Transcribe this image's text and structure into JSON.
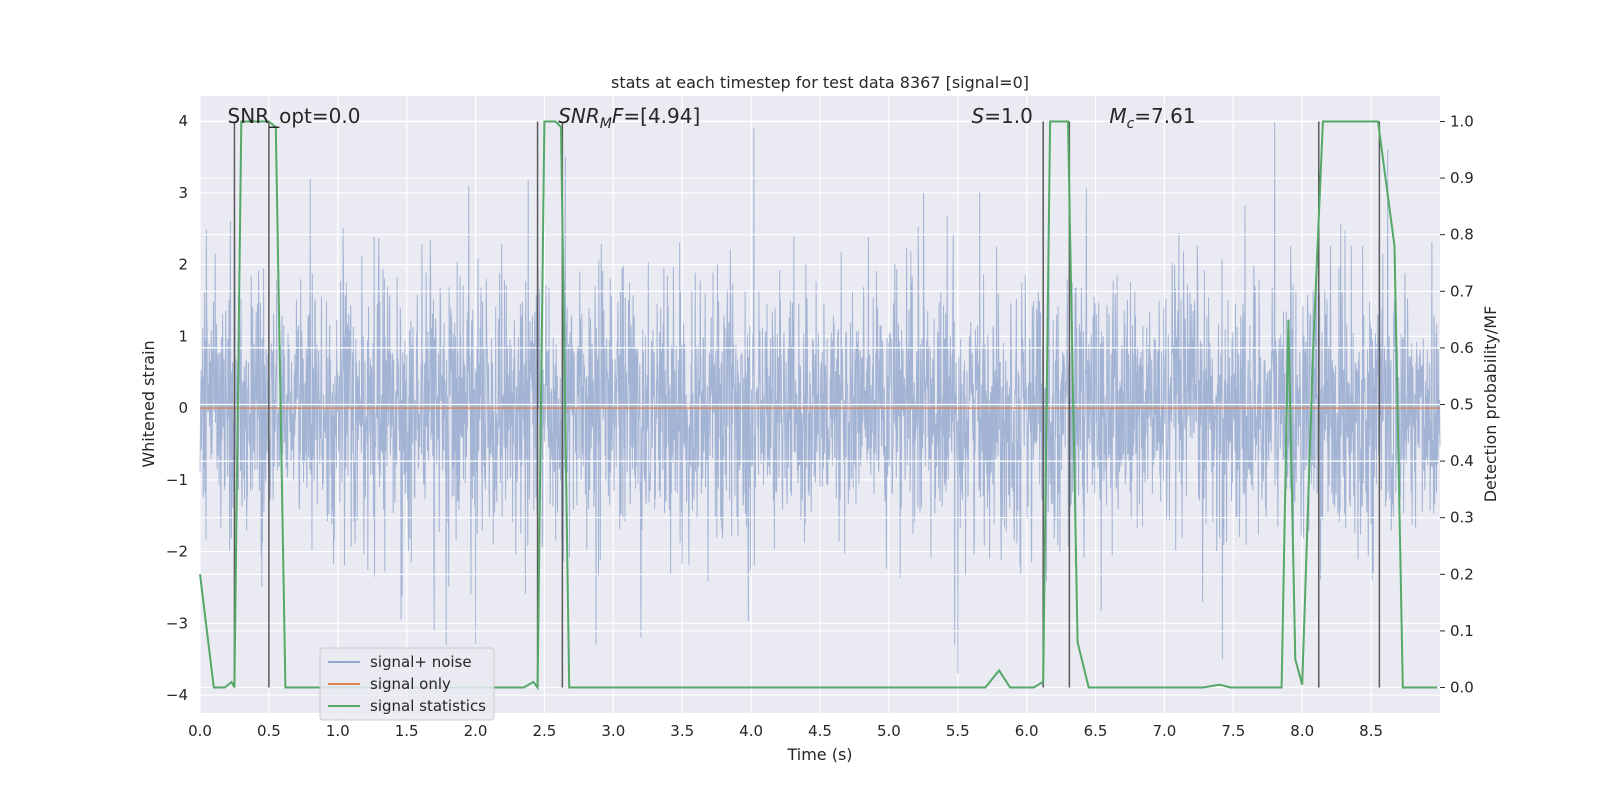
{
  "chart_data": {
    "type": "line",
    "title": "stats at each timestep for test data 8367 [signal=0]",
    "xlabel": "Time (s)",
    "ylabel": "Whitened strain",
    "y2label": "Detection probability/MF",
    "xlim": [
      0.0,
      9.0
    ],
    "ylim": [
      -4.25,
      4.35
    ],
    "y2lim": [
      -0.045,
      1.045
    ],
    "xticks": [
      "0.0",
      "0.5",
      "1.0",
      "1.5",
      "2.0",
      "2.5",
      "3.0",
      "3.5",
      "4.0",
      "4.5",
      "5.0",
      "5.5",
      "6.0",
      "6.5",
      "7.0",
      "7.5",
      "8.0",
      "8.5"
    ],
    "yticks": [
      "4",
      "3",
      "2",
      "1",
      "0",
      "−1",
      "−2",
      "−3",
      "−4"
    ],
    "y2ticks": [
      "1.0",
      "0.9",
      "0.8",
      "0.7",
      "0.6",
      "0.5",
      "0.4",
      "0.3",
      "0.2",
      "0.1",
      "0.0"
    ],
    "grid": true,
    "legend_position": "lower-left",
    "colors": {
      "noise": "#4c72b0",
      "signal": "#dd8452",
      "stats": "#55a868",
      "markers": "#5a5a5a",
      "plot_bg": "#eaeaf2",
      "grid": "#ffffff"
    },
    "annotations": [
      {
        "id": "snr-opt",
        "text": "SNR_opt=0.0",
        "x": 0.2
      },
      {
        "id": "snr-mf",
        "text": "SNR",
        "sub": "M",
        "suffix": "F=[4.94]",
        "x": 2.6,
        "italic": true
      },
      {
        "id": "s-value",
        "text": "S",
        "suffix": "=1.0",
        "x": 5.6,
        "italic": true
      },
      {
        "id": "mc-value",
        "text": "M",
        "sub": "c",
        "suffix": "=7.61",
        "x": 6.6,
        "italic": true
      }
    ],
    "series": [
      {
        "name": "signal+ noise",
        "kind": "noise",
        "sample_rate_hz": 200,
        "typical_sigma": 0.9,
        "extremes": [
          {
            "x": 0.25,
            "y": 2.8
          },
          {
            "x": 0.5,
            "y": 2.7
          },
          {
            "x": 0.8,
            "y": 3.2
          },
          {
            "x": 1.95,
            "y": 3.1
          },
          {
            "x": 2.65,
            "y": 3.5
          },
          {
            "x": 3.2,
            "y": 3.3
          },
          {
            "x": 4.02,
            "y": 3.9
          },
          {
            "x": 5.25,
            "y": 3.0
          },
          {
            "x": 7.8,
            "y": 4.0
          },
          {
            "x": 8.62,
            "y": 3.6
          },
          {
            "x": 5.5,
            "y": -3.7
          },
          {
            "x": 7.42,
            "y": -3.5
          },
          {
            "x": 3.2,
            "y": -3.2
          },
          {
            "x": 1.7,
            "y": -3.1
          },
          {
            "x": 2.0,
            "y": -3.3
          }
        ]
      },
      {
        "name": "signal only",
        "kind": "flat",
        "x": [
          0.0,
          9.0
        ],
        "y": [
          0.0,
          0.0
        ]
      },
      {
        "name": "signal statistics",
        "kind": "stats",
        "x": [
          0.0,
          0.05,
          0.1,
          0.18,
          0.23,
          0.25,
          0.3,
          0.4,
          0.5,
          0.55,
          0.62,
          0.67,
          2.35,
          2.42,
          2.45,
          2.5,
          2.58,
          2.62,
          2.68,
          2.72,
          5.7,
          5.8,
          5.88,
          6.05,
          6.12,
          6.17,
          6.3,
          6.37,
          6.45,
          7.28,
          7.4,
          7.48,
          7.85,
          7.9,
          7.95,
          8.0,
          8.08,
          8.15,
          8.2,
          8.55,
          8.67,
          8.73,
          8.78,
          8.98
        ],
        "y": [
          0.2,
          0.1,
          0.0,
          0.0,
          0.01,
          0.0,
          1.0,
          1.0,
          1.0,
          0.99,
          0.0,
          0.0,
          0.0,
          0.01,
          0.0,
          1.0,
          1.0,
          0.99,
          0.0,
          0.0,
          0.0,
          0.03,
          0.0,
          0.0,
          0.01,
          1.0,
          1.0,
          0.08,
          0.0,
          0.0,
          0.005,
          0.0,
          0.0,
          0.65,
          0.05,
          0.005,
          0.6,
          1.0,
          1.0,
          1.0,
          0.78,
          0.0,
          0.0,
          0.0
        ]
      }
    ],
    "marker_lines_x": [
      0.25,
      0.5,
      2.45,
      2.63,
      6.12,
      6.31,
      8.12,
      8.56
    ]
  }
}
